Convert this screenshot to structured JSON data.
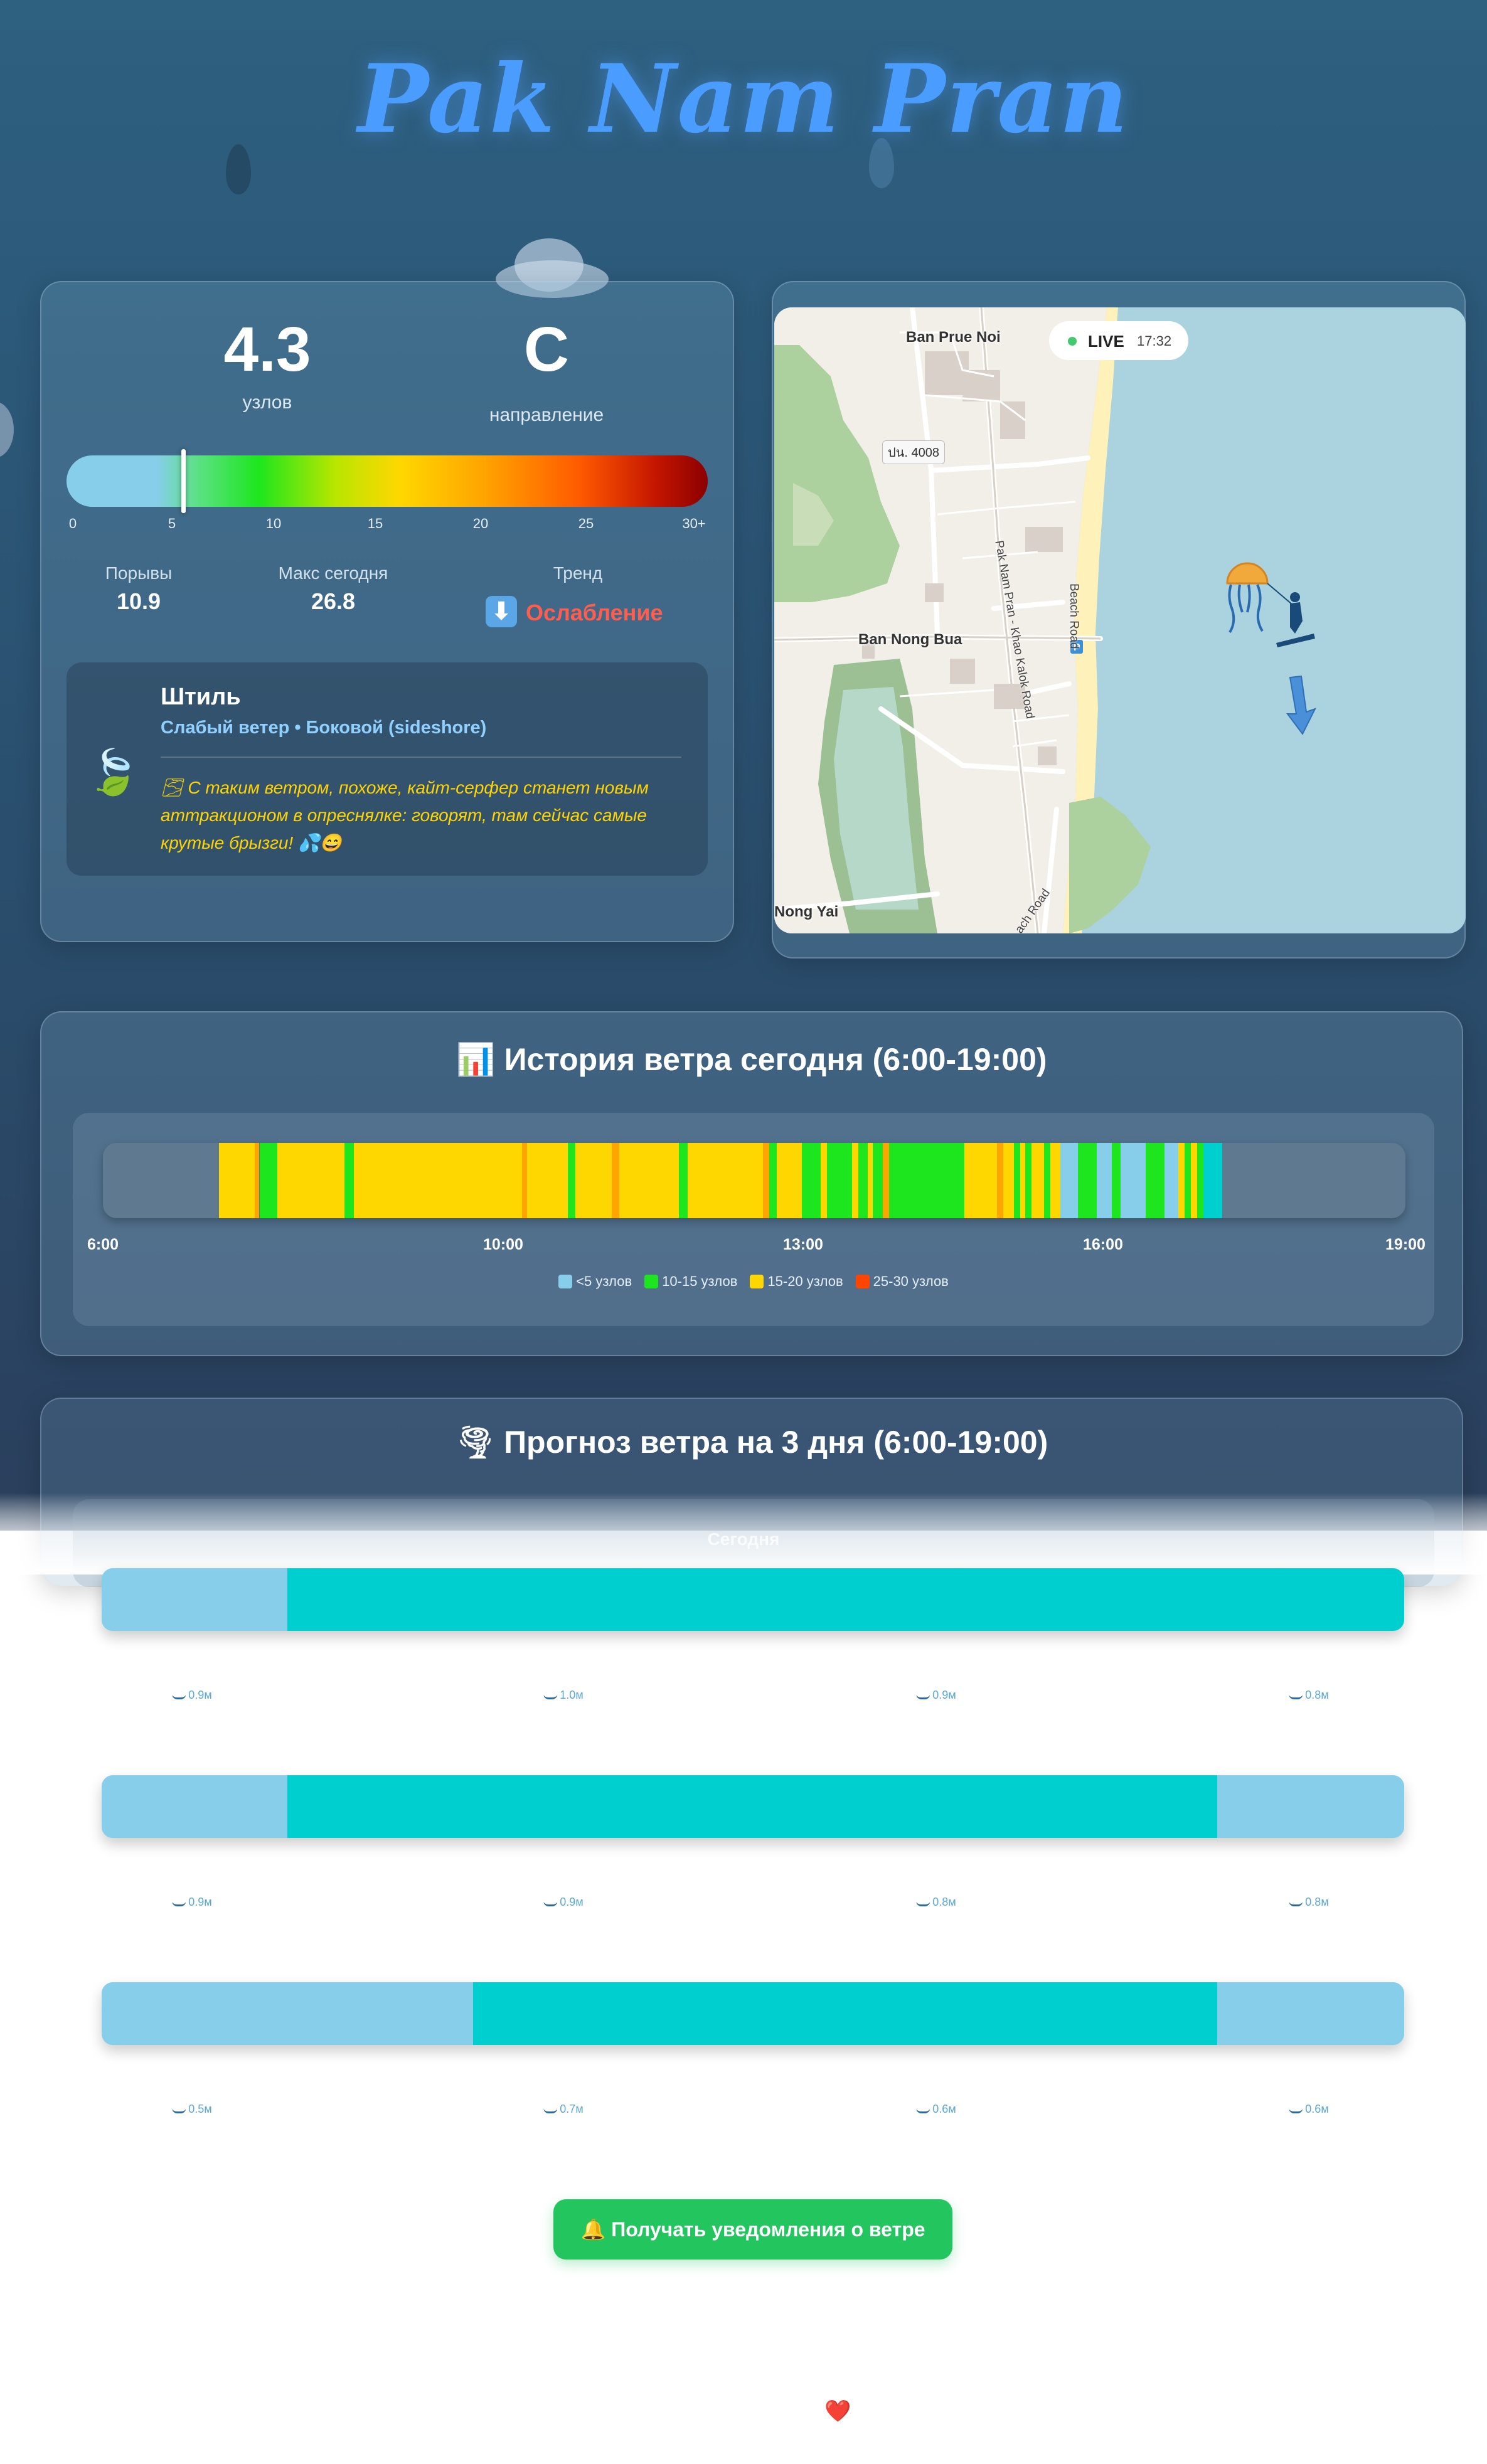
{
  "location": {
    "title": "Pak Nam Pran"
  },
  "current": {
    "speed": "4.3",
    "speed_unit": "узлов",
    "direction": "С",
    "direction_label": "направление",
    "speed_value_knots": 4.3,
    "scale_ticks": [
      "0",
      "5",
      "10",
      "15",
      "20",
      "25",
      "30+"
    ],
    "gusts_label": "Порывы",
    "gusts_value": "10.9",
    "max_label": "Макс сегодня",
    "max_value": "26.8",
    "trend_label": "Тренд",
    "trend_icon": "arrow-down-icon",
    "trend_value": "Ослабление",
    "condition_title": "Штиль",
    "condition_sub": "Слабый ветер • Боковой (sideshore)",
    "condition_text": "🌫 С таким ветром, похоже, кайт-серфер станет новым аттракционом в опреснялке: говорят, там сейчас самые крутые брызги! 💦😄",
    "condition_icon": "leaf-icon"
  },
  "map": {
    "live_label": "LIVE",
    "live_time": "17:32",
    "labels": {
      "ban_prue_noi": "Ban Prue Noi",
      "road_4008": "ปน. 4008",
      "pak_nam_pran_road": "Pak Nam Pran - Khao Kalok Road",
      "beach_road": "Beach Road",
      "ban_nong_bua": "Ban Nong Bua",
      "nong_yai": "Nong Yai",
      "south_road": "ach Road"
    },
    "marker_icon": "kitesurfer-jellyfish-icon",
    "wind_arrow_icon": "wind-direction-arrow-icon",
    "parking_icon": "P"
  },
  "history": {
    "title": "📊 История ветра сегодня (6:00-19:00)",
    "ticks": [
      "6:00",
      "10:00",
      "13:00",
      "16:00",
      "19:00"
    ],
    "legend": [
      {
        "label": "<5 узлов",
        "color": "#87ceeb"
      },
      {
        "label": "10-15 узлов",
        "color": "#1ee61e"
      },
      {
        "label": "15-20 узлов",
        "color": "#ffd700"
      },
      {
        "label": "25-30 узлов",
        "color": "#ff4500"
      }
    ]
  },
  "forecast": {
    "title": "🌪 Прогноз ветра на 3 дня (6:00-19:00)",
    "today_label": "Сегодня",
    "days": [
      {
        "waves": [
          "0.9м",
          "1.0м",
          "0.9м",
          "0.8м"
        ]
      },
      {
        "waves": [
          "0.9м",
          "0.9м",
          "0.8м",
          "0.8м"
        ]
      },
      {
        "waves": [
          "0.5м",
          "0.7м",
          "0.6м",
          "0.6м"
        ]
      }
    ]
  },
  "notify_button": "🔔 Получать уведомления о ветре",
  "footer_heart": "❤️",
  "colors": {
    "calm": "#87ceeb",
    "light": "#00cfcf",
    "moderate": "#1ee61e",
    "good": "#ffd700",
    "strong": "#ffa500",
    "accent_button": "#22c55e"
  }
}
